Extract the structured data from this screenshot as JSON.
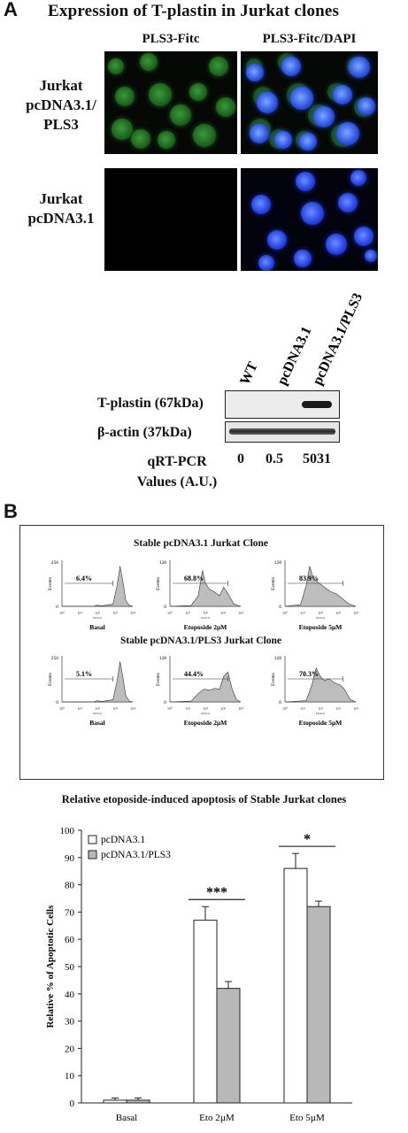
{
  "panel_a": {
    "letter": "A",
    "title": "Expression of T-plastin in Jurkat clones",
    "col1": "PLS3-Fitc",
    "col2": "PLS3-Fitc/DAPI",
    "row1_line1": "Jurkat",
    "row1_line2": "pcDNA3.1/",
    "row1_line3": "PLS3",
    "row2_line1": "Jurkat",
    "row2_line2": "pcDNA3.1",
    "lanes": [
      "WT",
      "pcDNA3.1",
      "pcDNA3.1/PLS3"
    ],
    "blot1_label": "T-plastin (67kDa)",
    "blot2_label": "β-actin (37kDa)",
    "qrt_line1": "qRT-PCR",
    "qrt_line2": "Values (A.U.)",
    "qrt_values": [
      "0",
      "0.5",
      "5031"
    ]
  },
  "panel_b": {
    "letter": "B",
    "top_title": "Stable pcDNA3.1 Jurkat Clone",
    "bottom_title": "Stable pcDNA3.1/PLS3 Jurkat Clone",
    "ylabel": "Events",
    "xlabel": "DiOC6",
    "top_row": [
      {
        "pct": "6.4%",
        "ymax": "256",
        "caption": "Basal"
      },
      {
        "pct": "68.8%",
        "ymax": "128",
        "caption": "Etoposide 2µM"
      },
      {
        "pct": "83.9%",
        "ymax": "128",
        "caption": "Etoposide 5µM"
      }
    ],
    "bottom_row": [
      {
        "pct": "5.1%",
        "ymax": "256",
        "caption": "Basal"
      },
      {
        "pct": "44.4%",
        "ymax": "128",
        "caption": "Etoposide 2µM"
      },
      {
        "pct": "70.3%",
        "ymax": "128",
        "caption": "Etoposide 5µM"
      }
    ]
  },
  "chart_data": {
    "type": "bar",
    "title": "Relative etoposide-induced apoptosis of Stable Jurkat clones",
    "ylabel": "Relative % of Apoptotic Cells",
    "xlabel": "",
    "categories": [
      "Basal",
      "Eto 2µM",
      "Eto 5µM"
    ],
    "ylim": [
      0,
      100
    ],
    "yticks": [
      "0",
      "10",
      "20",
      "30",
      "40",
      "50",
      "60",
      "70",
      "80",
      "90",
      "100"
    ],
    "series": [
      {
        "name": "pcDNA3.1",
        "values": [
          1,
          67,
          86
        ],
        "errors": [
          0.8,
          5,
          5.5
        ],
        "color": "#ffffff"
      },
      {
        "name": "pcDNA3.1/PLS3",
        "values": [
          1,
          42,
          72
        ],
        "errors": [
          0.8,
          2.5,
          2
        ],
        "color": "#b8b8b8"
      }
    ],
    "significance": [
      "",
      "***",
      "*"
    ],
    "legend_position": "top-left",
    "grid": false
  }
}
